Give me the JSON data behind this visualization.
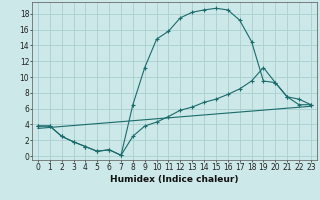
{
  "xlabel": "Humidex (Indice chaleur)",
  "bg_color": "#cce8e8",
  "grid_color": "#aacfcf",
  "line_color": "#1a6b6b",
  "xlim": [
    -0.5,
    23.5
  ],
  "ylim": [
    -0.5,
    19.5
  ],
  "xticks": [
    0,
    1,
    2,
    3,
    4,
    5,
    6,
    7,
    8,
    9,
    10,
    11,
    12,
    13,
    14,
    15,
    16,
    17,
    18,
    19,
    20,
    21,
    22,
    23
  ],
  "yticks": [
    0,
    2,
    4,
    6,
    8,
    10,
    12,
    14,
    16,
    18
  ],
  "line1_x": [
    0,
    1,
    2,
    3,
    4,
    5,
    6,
    7,
    8,
    9,
    10,
    11,
    12,
    13,
    14,
    15,
    16,
    17,
    18,
    19,
    20,
    21,
    22,
    23
  ],
  "line1_y": [
    3.8,
    3.8,
    2.5,
    1.8,
    1.2,
    0.6,
    0.8,
    0.1,
    6.5,
    11.2,
    14.8,
    15.8,
    17.5,
    18.2,
    18.5,
    18.7,
    18.5,
    17.2,
    14.5,
    9.5,
    9.3,
    7.5,
    6.5,
    6.5
  ],
  "line2_x": [
    0,
    1,
    2,
    3,
    4,
    5,
    6,
    7,
    8,
    9,
    10,
    11,
    12,
    13,
    14,
    15,
    16,
    17,
    18,
    19,
    20,
    21,
    22,
    23
  ],
  "line2_y": [
    3.8,
    3.8,
    2.5,
    1.8,
    1.2,
    0.6,
    0.8,
    0.1,
    2.5,
    3.8,
    4.3,
    5.0,
    5.8,
    6.2,
    6.8,
    7.2,
    7.8,
    8.5,
    9.5,
    11.2,
    9.3,
    7.5,
    7.2,
    6.5
  ],
  "line3_x": [
    0,
    23
  ],
  "line3_y": [
    3.5,
    6.3
  ],
  "tick_fontsize": 5.5,
  "xlabel_fontsize": 6.5
}
